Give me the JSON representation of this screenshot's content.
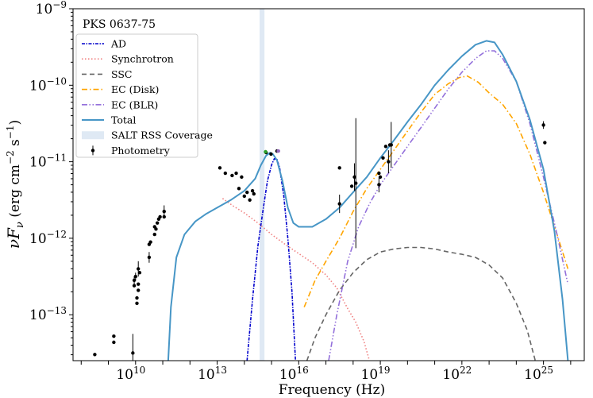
{
  "chart_data": {
    "type": "line",
    "title": "",
    "annotation": "PKS 0637-75",
    "xlabel": "Frequency (Hz)",
    "ylabel_prefix": "νF",
    "ylabel_sub": "ν",
    "ylabel_units": "(erg cm",
    "ylabel_units_sup1": "−2",
    "ylabel_units_mid": " s",
    "ylabel_units_sup2": "−1",
    "ylabel_units_end": ")",
    "x_scale": "log10",
    "y_scale": "log10",
    "xlim_log": [
      7.7,
      26.5
    ],
    "ylim_log": [
      -13.6,
      -9
    ],
    "x_ticks": [
      {
        "log": 10,
        "base": "10",
        "exp": "10"
      },
      {
        "log": 13,
        "base": "10",
        "exp": "13"
      },
      {
        "log": 16,
        "base": "10",
        "exp": "16"
      },
      {
        "log": 19,
        "base": "10",
        "exp": "19"
      },
      {
        "log": 22,
        "base": "10",
        "exp": "22"
      },
      {
        "log": 25,
        "base": "10",
        "exp": "25"
      }
    ],
    "y_ticks": [
      {
        "log": -13,
        "base": "10",
        "exp": "−13"
      },
      {
        "log": -12,
        "base": "10",
        "exp": "−12"
      },
      {
        "log": -11,
        "base": "10",
        "exp": "−11"
      },
      {
        "log": -10,
        "base": "10",
        "exp": "−10"
      },
      {
        "log": -9,
        "base": "10",
        "exp": "−9"
      }
    ],
    "legend_location": "upper-left",
    "band": {
      "name": "SALT RSS Coverage",
      "x_log": [
        14.56,
        14.74
      ],
      "color": "#dfe9f4"
    },
    "series": [
      {
        "name": "AD",
        "style": "dashdot-dense",
        "color": "#0000cc",
        "points": [
          [
            14.1,
            -13.6
          ],
          [
            14.3,
            -12.8
          ],
          [
            14.5,
            -12.1
          ],
          [
            14.7,
            -11.6
          ],
          [
            14.85,
            -11.25
          ],
          [
            15.0,
            -11.04
          ],
          [
            15.1,
            -10.96
          ],
          [
            15.2,
            -10.97
          ],
          [
            15.3,
            -11.08
          ],
          [
            15.45,
            -11.45
          ],
          [
            15.6,
            -12.0
          ],
          [
            15.75,
            -12.7
          ],
          [
            15.88,
            -13.6
          ]
        ]
      },
      {
        "name": "Synchrotron",
        "style": "dotted",
        "color": "#f08080",
        "points": [
          [
            13.2,
            -11.48
          ],
          [
            13.6,
            -11.58
          ],
          [
            14.0,
            -11.67
          ],
          [
            14.5,
            -11.8
          ],
          [
            15.0,
            -11.95
          ],
          [
            15.5,
            -12.08
          ],
          [
            16.0,
            -12.2
          ],
          [
            16.5,
            -12.32
          ],
          [
            17.0,
            -12.48
          ],
          [
            17.4,
            -12.65
          ],
          [
            17.8,
            -12.92
          ],
          [
            18.1,
            -13.1
          ],
          [
            18.4,
            -13.35
          ],
          [
            18.6,
            -13.6
          ]
        ]
      },
      {
        "name": "SSC",
        "style": "dashed",
        "color": "#666666",
        "points": [
          [
            16.3,
            -13.6
          ],
          [
            16.6,
            -13.3
          ],
          [
            17.0,
            -13.0
          ],
          [
            17.5,
            -12.68
          ],
          [
            18.0,
            -12.45
          ],
          [
            18.5,
            -12.28
          ],
          [
            19.0,
            -12.18
          ],
          [
            19.5,
            -12.14
          ],
          [
            20.0,
            -12.12
          ],
          [
            20.5,
            -12.12
          ],
          [
            21.0,
            -12.14
          ],
          [
            21.5,
            -12.18
          ],
          [
            22.0,
            -12.21
          ],
          [
            22.5,
            -12.25
          ],
          [
            23.0,
            -12.35
          ],
          [
            23.5,
            -12.52
          ],
          [
            24.0,
            -12.85
          ],
          [
            24.4,
            -13.2
          ],
          [
            24.7,
            -13.6
          ]
        ]
      },
      {
        "name": "EC (Disk)",
        "style": "dashdot",
        "color": "#ffa500",
        "points": [
          [
            16.2,
            -12.9
          ],
          [
            16.6,
            -12.55
          ],
          [
            17.0,
            -12.3
          ],
          [
            17.5,
            -12.0
          ],
          [
            18.0,
            -11.65
          ],
          [
            18.5,
            -11.35
          ],
          [
            19.0,
            -11.1
          ],
          [
            19.5,
            -10.85
          ],
          [
            20.0,
            -10.6
          ],
          [
            20.5,
            -10.35
          ],
          [
            21.0,
            -10.12
          ],
          [
            21.5,
            -9.98
          ],
          [
            21.9,
            -9.9
          ],
          [
            22.2,
            -9.88
          ],
          [
            22.6,
            -9.96
          ],
          [
            23.0,
            -10.1
          ],
          [
            23.5,
            -10.25
          ],
          [
            24.0,
            -10.5
          ],
          [
            24.5,
            -10.9
          ],
          [
            25.0,
            -11.4
          ],
          [
            25.5,
            -11.95
          ],
          [
            25.9,
            -12.4
          ]
        ]
      },
      {
        "name": "EC (BLR)",
        "style": "dashdotdot",
        "color": "#9370db",
        "points": [
          [
            17.1,
            -13.6
          ],
          [
            17.4,
            -13.0
          ],
          [
            17.8,
            -12.3
          ],
          [
            18.2,
            -11.85
          ],
          [
            18.6,
            -11.55
          ],
          [
            19.0,
            -11.3
          ],
          [
            19.5,
            -11.05
          ],
          [
            20.0,
            -10.8
          ],
          [
            20.5,
            -10.55
          ],
          [
            21.0,
            -10.3
          ],
          [
            21.5,
            -10.05
          ],
          [
            22.0,
            -9.83
          ],
          [
            22.5,
            -9.65
          ],
          [
            22.9,
            -9.55
          ],
          [
            23.2,
            -9.55
          ],
          [
            23.5,
            -9.65
          ],
          [
            24.0,
            -9.95
          ],
          [
            24.5,
            -10.5
          ],
          [
            25.0,
            -11.2
          ],
          [
            25.5,
            -11.95
          ],
          [
            25.9,
            -12.6
          ]
        ]
      },
      {
        "name": "Total",
        "style": "solid",
        "color": "#4796c6",
        "points": [
          [
            11.2,
            -13.6
          ],
          [
            11.3,
            -12.9
          ],
          [
            11.5,
            -12.25
          ],
          [
            11.8,
            -11.95
          ],
          [
            12.2,
            -11.78
          ],
          [
            12.6,
            -11.68
          ],
          [
            13.0,
            -11.6
          ],
          [
            13.5,
            -11.5
          ],
          [
            14.0,
            -11.38
          ],
          [
            14.4,
            -11.22
          ],
          [
            14.6,
            -11.05
          ],
          [
            14.8,
            -10.92
          ],
          [
            14.95,
            -10.88
          ],
          [
            15.05,
            -10.9
          ],
          [
            15.2,
            -10.98
          ],
          [
            15.4,
            -11.25
          ],
          [
            15.6,
            -11.6
          ],
          [
            15.8,
            -11.8
          ],
          [
            16.0,
            -11.85
          ],
          [
            16.5,
            -11.85
          ],
          [
            17.0,
            -11.75
          ],
          [
            17.5,
            -11.6
          ],
          [
            18.0,
            -11.4
          ],
          [
            18.5,
            -11.2
          ],
          [
            19.0,
            -10.95
          ],
          [
            19.5,
            -10.72
          ],
          [
            20.0,
            -10.48
          ],
          [
            20.5,
            -10.25
          ],
          [
            21.0,
            -10.0
          ],
          [
            21.5,
            -9.8
          ],
          [
            22.0,
            -9.62
          ],
          [
            22.5,
            -9.47
          ],
          [
            22.9,
            -9.42
          ],
          [
            23.2,
            -9.44
          ],
          [
            23.5,
            -9.6
          ],
          [
            24.0,
            -9.95
          ],
          [
            24.5,
            -10.45
          ],
          [
            25.0,
            -11.1
          ],
          [
            25.4,
            -11.9
          ],
          [
            25.7,
            -12.8
          ],
          [
            25.9,
            -13.6
          ]
        ]
      }
    ],
    "photometry": {
      "name": "Photometry",
      "color": "#000000",
      "points": [
        [
          8.5,
          -13.52,
          0
        ],
        [
          9.2,
          -13.28,
          0
        ],
        [
          9.2,
          -13.36,
          0
        ],
        [
          9.9,
          -13.5,
          0.25
        ],
        [
          9.95,
          -12.55,
          0.05
        ],
        [
          9.95,
          -12.62,
          0
        ],
        [
          10.0,
          -12.5,
          0.05
        ],
        [
          10.05,
          -12.85,
          0
        ],
        [
          10.05,
          -12.78,
          0
        ],
        [
          10.1,
          -12.68,
          0
        ],
        [
          10.1,
          -12.6,
          0
        ],
        [
          10.1,
          -12.4,
          0.1
        ],
        [
          10.15,
          -12.45,
          0
        ],
        [
          10.5,
          -12.25,
          0.07
        ],
        [
          10.5,
          -12.08,
          0
        ],
        [
          10.55,
          -12.05,
          0
        ],
        [
          10.7,
          -11.95,
          0
        ],
        [
          10.7,
          -11.85,
          0
        ],
        [
          10.75,
          -11.88,
          0
        ],
        [
          10.8,
          -11.8,
          0
        ],
        [
          10.85,
          -11.75,
          0
        ],
        [
          10.9,
          -11.72,
          0
        ],
        [
          11.05,
          -11.72,
          0
        ],
        [
          11.05,
          -11.65,
          0.08
        ],
        [
          13.1,
          -11.08,
          0
        ],
        [
          13.3,
          -11.15,
          0
        ],
        [
          13.55,
          -11.18,
          0
        ],
        [
          13.7,
          -11.15,
          0
        ],
        [
          13.9,
          -11.2,
          0
        ],
        [
          13.8,
          -11.35,
          0
        ],
        [
          14.0,
          -11.45,
          0
        ],
        [
          14.1,
          -11.4,
          0
        ],
        [
          14.2,
          -11.5,
          0
        ],
        [
          14.3,
          -11.38,
          0
        ],
        [
          14.35,
          -11.42,
          0
        ],
        [
          14.8,
          -10.88,
          0
        ],
        [
          14.98,
          -10.9,
          0
        ],
        [
          15.2,
          -10.86,
          0
        ],
        [
          17.5,
          -11.08,
          0
        ],
        [
          17.5,
          -11.55,
          0.12
        ],
        [
          17.95,
          -11.32,
          0
        ],
        [
          18.05,
          -11.2,
          0.18
        ],
        [
          18.1,
          -11.28,
          0.85
        ],
        [
          18.95,
          -11.15,
          0
        ],
        [
          18.95,
          -11.3,
          0.1
        ],
        [
          19.0,
          -11.2,
          0
        ],
        [
          19.1,
          -10.95,
          0
        ],
        [
          19.2,
          -10.8,
          0
        ],
        [
          19.3,
          -11.0,
          0.15
        ],
        [
          19.35,
          -10.78,
          0
        ],
        [
          19.4,
          -10.78,
          0.3
        ],
        [
          25.0,
          -10.52,
          0.05
        ],
        [
          25.05,
          -10.75,
          0
        ]
      ]
    },
    "colored_points": [
      {
        "x": 14.78,
        "y": -10.87,
        "color": "#2ca02c"
      },
      {
        "x": 15.25,
        "y": -10.86,
        "color": "#9467bd"
      }
    ]
  }
}
